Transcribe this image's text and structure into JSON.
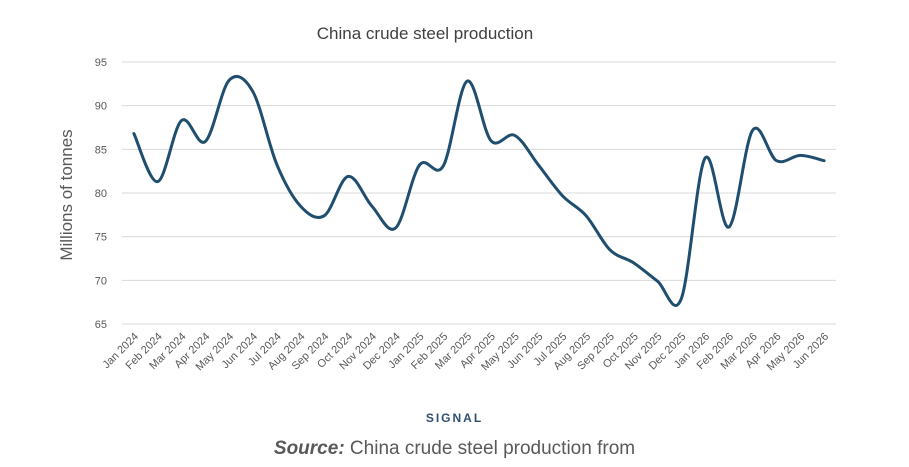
{
  "chart_data": {
    "type": "line",
    "title": "China crude steel production",
    "xlabel": "",
    "ylabel": "Millions of tonnes",
    "ylim": [
      65,
      95
    ],
    "yticks": [
      65,
      70,
      75,
      80,
      85,
      90,
      95
    ],
    "grid": true,
    "legend": "none",
    "categories": [
      "Jan 2024",
      "Feb 2024",
      "Mar 2024",
      "Apr 2024",
      "May 2024",
      "Jun 2024",
      "Jul 2024",
      "Aug 2024",
      "Sep 2024",
      "Oct 2024",
      "Nov 2024",
      "Dec 2024",
      "Jan 2025",
      "Feb 2025",
      "Mar 2025",
      "Apr 2025",
      "May 2025",
      "Jun 2025",
      "Jul 2025",
      "Aug 2025",
      "Sep 2025",
      "Oct 2025",
      "Nov 2025",
      "Dec 2025",
      "Jan 2026",
      "Feb 2026",
      "Mar 2026",
      "Apr 2026",
      "May 2026",
      "Jun 2026"
    ],
    "series": [
      {
        "name": "",
        "color": "#1f4e6e",
        "values": [
          86.8,
          81.3,
          88.3,
          85.9,
          92.9,
          91.6,
          83.3,
          78.5,
          77.4,
          81.9,
          78.5,
          76.0,
          83.2,
          83.1,
          92.8,
          86.0,
          86.6,
          83.2,
          79.7,
          77.4,
          73.5,
          72.0,
          69.9,
          67.9,
          84.0,
          76.1,
          87.2,
          83.7,
          84.3,
          83.7
        ]
      }
    ]
  },
  "footer": {
    "brand": "SIGNAL",
    "source_label": "Source:",
    "source_text": " China crude steel production from"
  }
}
